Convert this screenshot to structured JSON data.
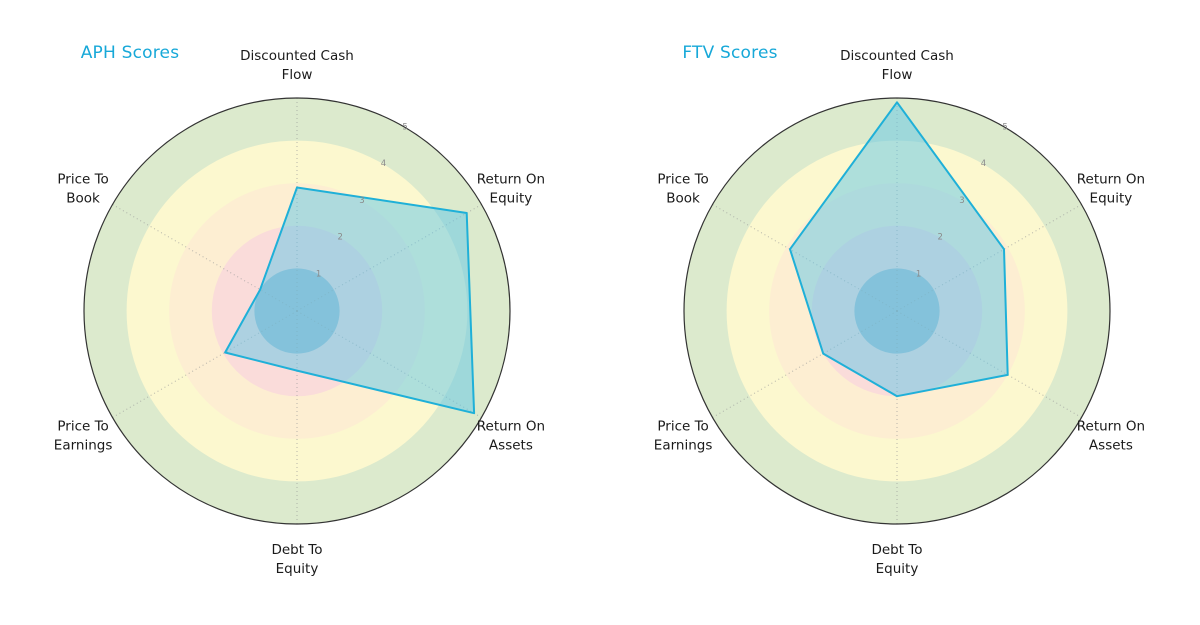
{
  "styles": {
    "background": "#ffffff",
    "title_color": "#17a8d8",
    "label_color": "#1a1a1a",
    "tick_color": "#8a8a8a",
    "spoke_color": "#999999",
    "outer_stroke": "#333333",
    "polygon_fill": "rgba(96, 197, 232, 0.5)",
    "polygon_stroke": "#1fb0d8",
    "ring_colors": [
      "#a9bfce",
      "#fadcda",
      "#fdeed2",
      "#fcf8cf",
      "#dceacd"
    ]
  },
  "chart_data": [
    {
      "type": "radar",
      "title": "APH Scores",
      "categories": [
        "Discounted Cash Flow",
        "Return On Equity",
        "Return On Assets",
        "Debt To Equity",
        "Price To Earnings",
        "Price To Book"
      ],
      "category_lines": [
        [
          "Discounted Cash",
          "Flow"
        ],
        [
          "Return On",
          "Equity"
        ],
        [
          "Return On",
          "Assets"
        ],
        [
          "Debt To",
          "Equity"
        ],
        [
          "Price To",
          "Earnings"
        ],
        [
          "Price To",
          "Book"
        ]
      ],
      "values": [
        2.9,
        4.6,
        4.8,
        1.4,
        1.95,
        1.0
      ],
      "r_ticks": [
        "1",
        "2",
        "3",
        "4",
        "5"
      ],
      "r_max": 5,
      "legend_position": "none",
      "grid": "dotted-spokes"
    },
    {
      "type": "radar",
      "title": "FTV Scores",
      "categories": [
        "Discounted Cash Flow",
        "Return On Equity",
        "Return On Assets",
        "Debt To Equity",
        "Price To Earnings",
        "Price To Book"
      ],
      "category_lines": [
        [
          "Discounted Cash",
          "Flow"
        ],
        [
          "Return On",
          "Equity"
        ],
        [
          "Return On",
          "Assets"
        ],
        [
          "Debt To",
          "Equity"
        ],
        [
          "Price To",
          "Earnings"
        ],
        [
          "Price To",
          "Book"
        ]
      ],
      "values": [
        4.9,
        2.9,
        3.0,
        2.0,
        2.0,
        2.9
      ],
      "r_ticks": [
        "1",
        "2",
        "3",
        "4",
        "5"
      ],
      "r_max": 5,
      "legend_position": "none",
      "grid": "dotted-spokes"
    }
  ]
}
